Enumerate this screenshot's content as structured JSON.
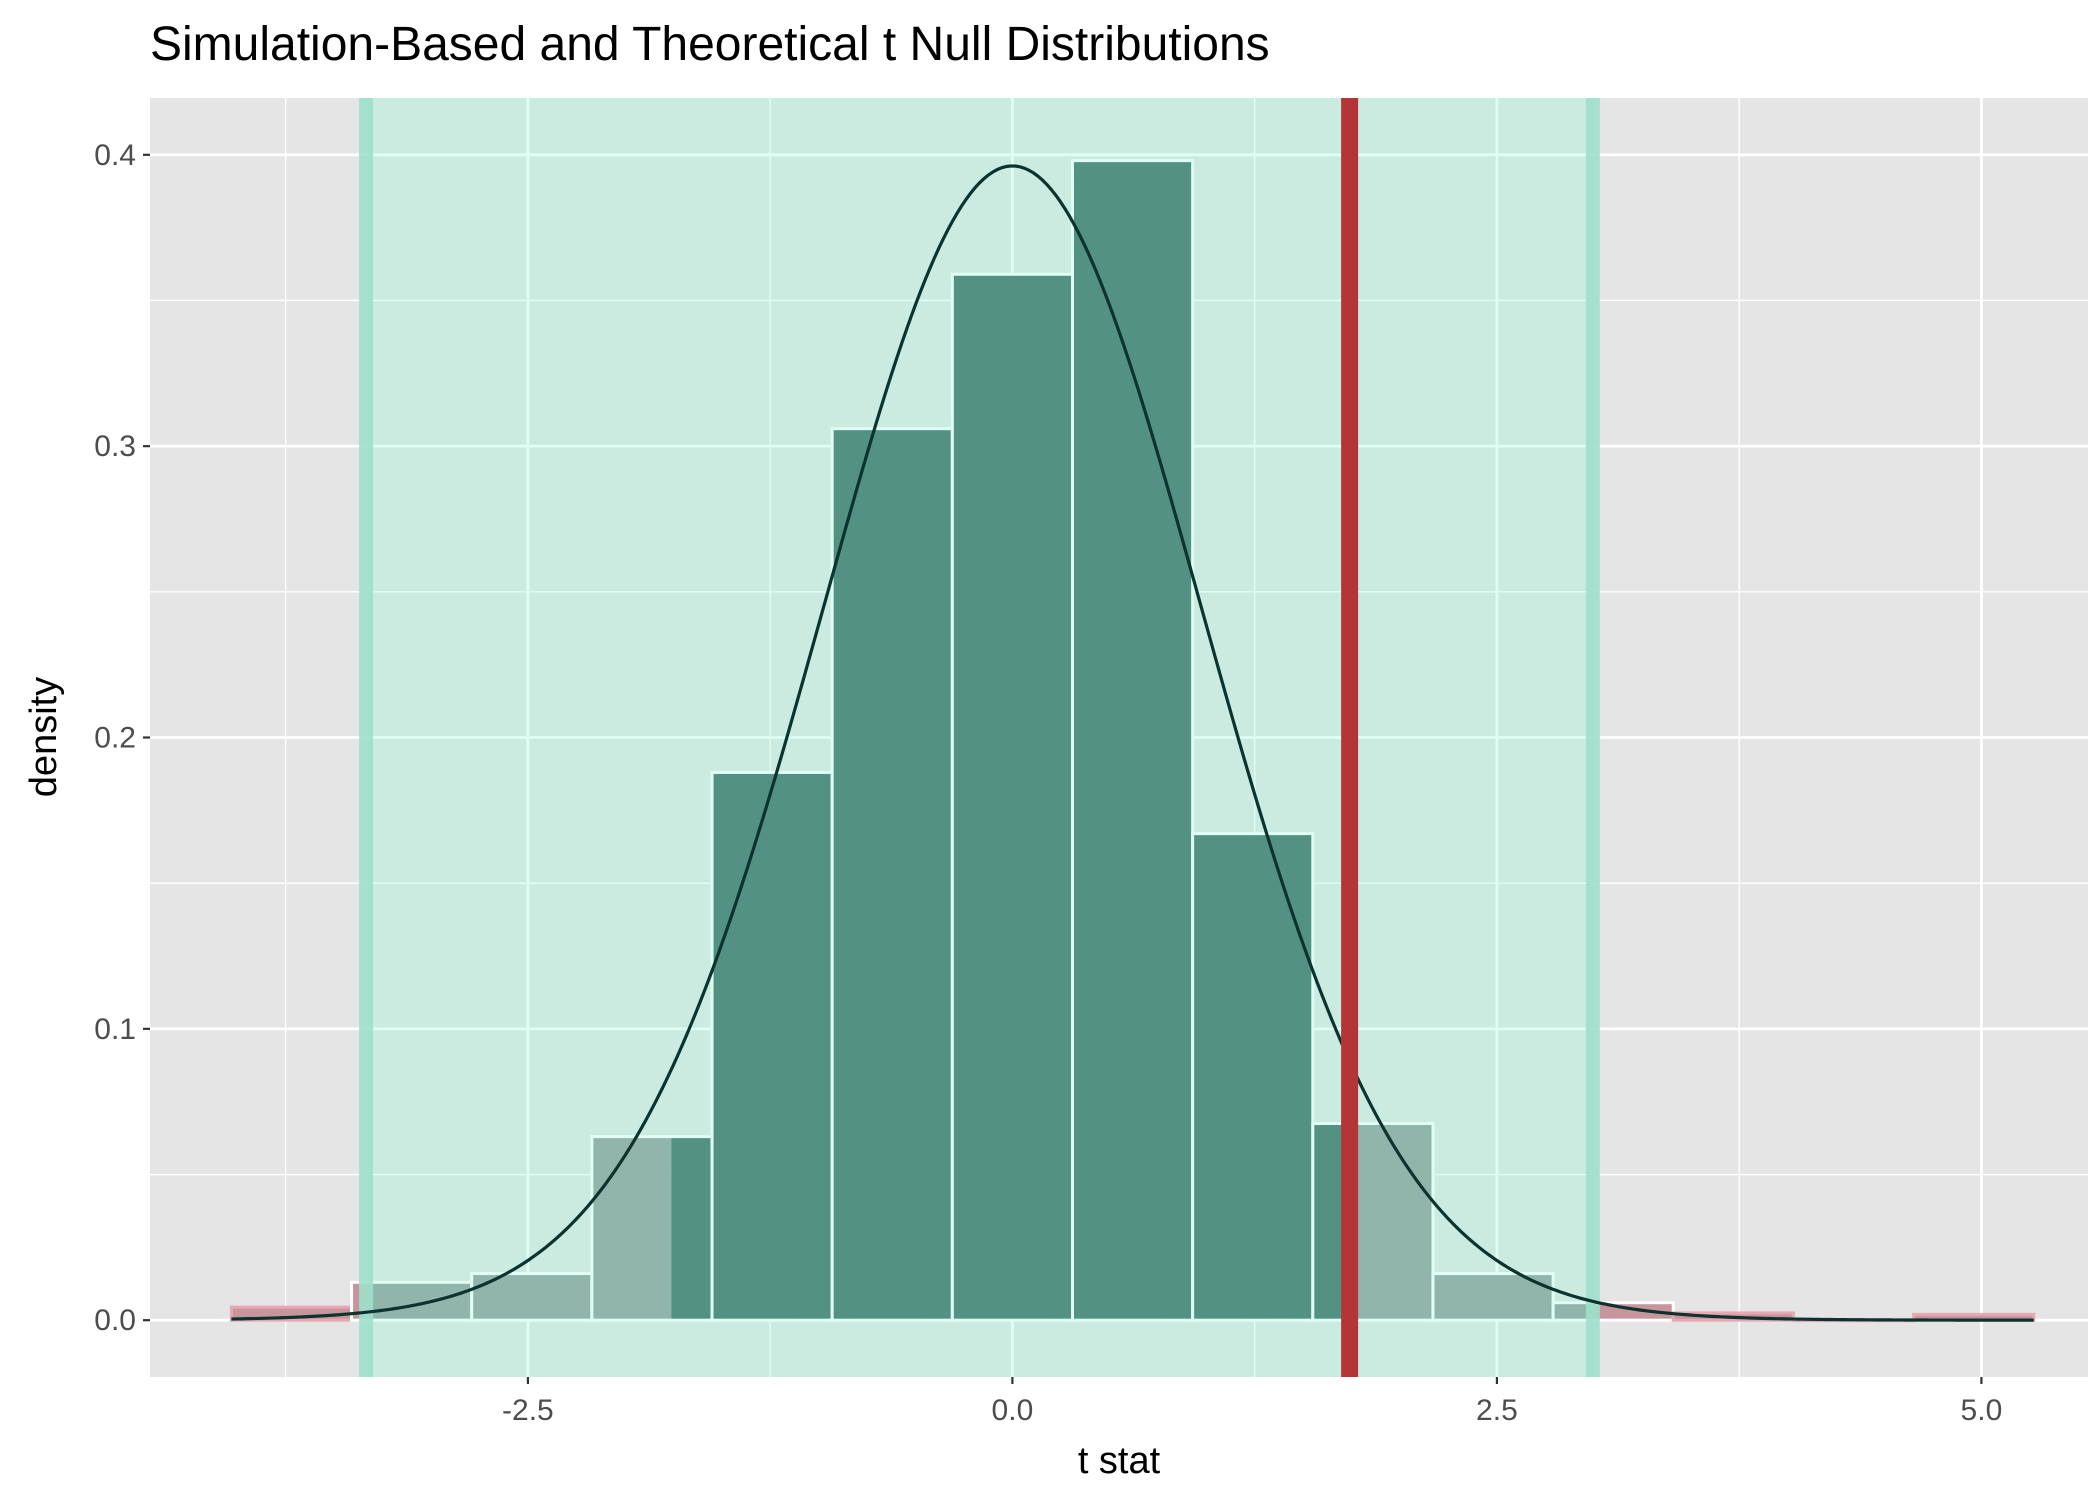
{
  "chart_data": {
    "type": "bar",
    "title": "Simulation-Based and Theoretical t Null Distributions",
    "xlabel": "t stat",
    "ylabel": "density",
    "xlim": [
      -4.45,
      5.55
    ],
    "ylim": [
      -0.0195,
      0.4195
    ],
    "x_ticks": [
      {
        "value": -2.5,
        "label": "-2.5"
      },
      {
        "value": 0.0,
        "label": "0.0"
      },
      {
        "value": 2.5,
        "label": "2.5"
      },
      {
        "value": 5.0,
        "label": "5.0"
      }
    ],
    "y_ticks": [
      {
        "value": 0.0,
        "label": "0.0"
      },
      {
        "value": 0.1,
        "label": "0.1"
      },
      {
        "value": 0.2,
        "label": "0.2"
      },
      {
        "value": 0.3,
        "label": "0.3"
      },
      {
        "value": 0.4,
        "label": "0.4"
      }
    ],
    "grid": true,
    "histogram": {
      "bin_width": 0.62,
      "bins": [
        {
          "x0": -4.03,
          "x1": -3.41,
          "density": 0.0045
        },
        {
          "x0": -3.41,
          "x1": -2.79,
          "density": 0.013
        },
        {
          "x0": -2.79,
          "x1": -2.17,
          "density": 0.016
        },
        {
          "x0": -2.17,
          "x1": -1.55,
          "density": 0.063
        },
        {
          "x0": -1.55,
          "x1": -0.93,
          "density": 0.188
        },
        {
          "x0": -0.93,
          "x1": -0.31,
          "density": 0.306
        },
        {
          "x0": -0.31,
          "x1": 0.31,
          "density": 0.359
        },
        {
          "x0": 0.31,
          "x1": 0.93,
          "density": 0.398
        },
        {
          "x0": 0.93,
          "x1": 1.55,
          "density": 0.167
        },
        {
          "x0": 1.55,
          "x1": 2.17,
          "density": 0.0675
        },
        {
          "x0": 2.17,
          "x1": 2.79,
          "density": 0.016
        },
        {
          "x0": 2.79,
          "x1": 3.41,
          "density": 0.006
        },
        {
          "x0": 3.41,
          "x1": 4.03,
          "density": 0.0025
        },
        {
          "x0": 4.03,
          "x1": 4.65,
          "density": 0.0
        },
        {
          "x0": 4.65,
          "x1": 5.27,
          "density": 0.002
        }
      ]
    },
    "theoretical_curve": {
      "distribution": "t",
      "df": 36,
      "x_range": [
        -4.03,
        5.27
      ]
    },
    "observed_statistic": 1.74,
    "shaded_region": {
      "x0": -3.335,
      "x1": 2.995
    },
    "colors": {
      "panel_background": "#e5e5e5",
      "gridline": "#ffffff",
      "shade_fill": "#7fffd4",
      "shade_edge": "#9edfcc",
      "bar_inside": "#446c67",
      "bar_outside": "#979c9c",
      "bar_tail": "#c9959d",
      "tail_edge": "#e8a7b4",
      "bar_outline": "#ffffff",
      "curve": "#0c332e",
      "observed_line": "#b43537"
    }
  }
}
